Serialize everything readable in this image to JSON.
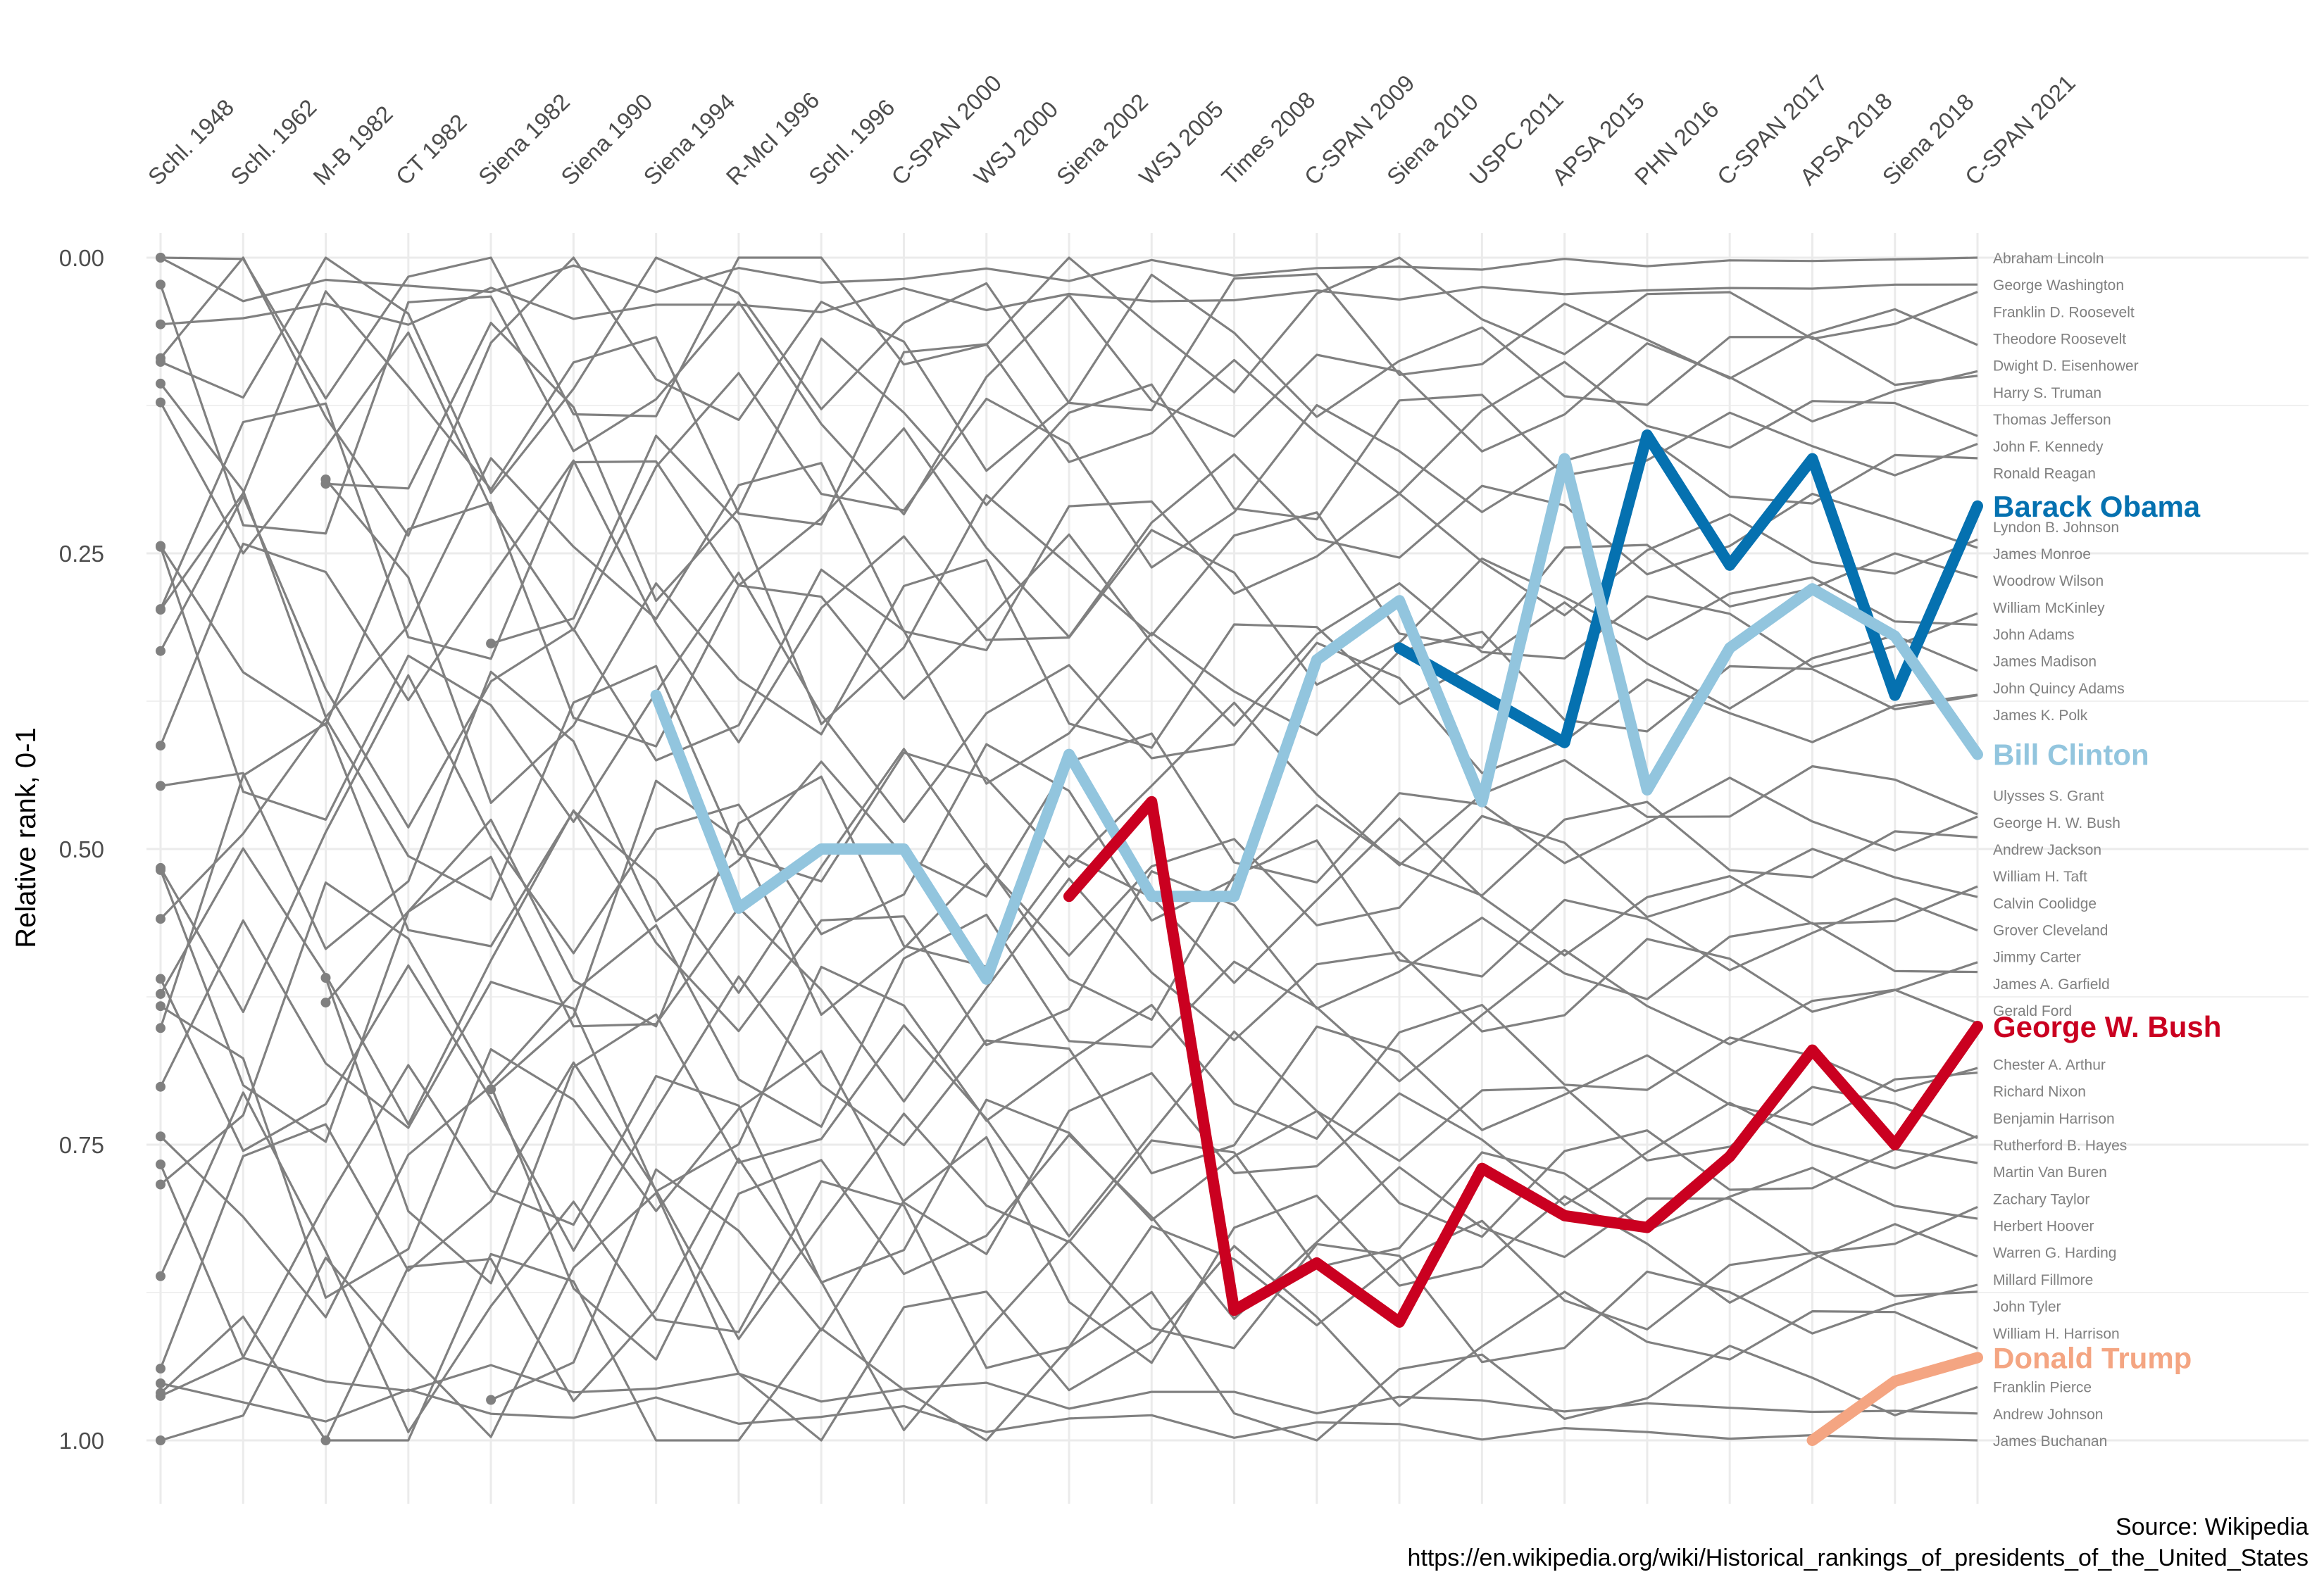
{
  "chart_data": {
    "type": "line",
    "ylabel": "Relative rank, 0-1",
    "ylim": [
      0,
      1
    ],
    "y_reversed": true,
    "yticks": [
      "0.00",
      "0.25",
      "0.50",
      "0.75",
      "1.00"
    ],
    "grid": true,
    "source_lines": [
      "Source: Wikipedia",
      "https://en.wikipedia.org/wiki/Historical_rankings_of_presidents_of_the_United_States"
    ],
    "x": [
      "Schl. 1948",
      "Schl. 1962",
      "M-B 1982",
      "CT 1982",
      "Siena 1982",
      "Siena 1990",
      "Siena 1994",
      "R-McI 1996",
      "Schl. 1996",
      "C-SPAN 2000",
      "WSJ 2000",
      "Siena 2002",
      "WSJ 2005",
      "Times 2008",
      "C-SPAN 2009",
      "Siena 2010",
      "USPC 2011",
      "APSA 2015",
      "PHN 2016",
      "C-SPAN 2017",
      "APSA 2018",
      "Siena 2018",
      "C-SPAN 2021"
    ],
    "background_series_names": [
      "Abraham Lincoln",
      "George Washington",
      "Franklin D. Roosevelt",
      "Theodore Roosevelt",
      "Dwight D. Eisenhower",
      "Harry S. Truman",
      "Thomas Jefferson",
      "John F. Kennedy",
      "Ronald Reagan",
      "Lyndon B. Johnson",
      "James Monroe",
      "Woodrow Wilson",
      "William McKinley",
      "John Adams",
      "James Madison",
      "John Quincy Adams",
      "James K. Polk",
      "Ulysses S. Grant",
      "George H. W. Bush",
      "Andrew Jackson",
      "William H. Taft",
      "Calvin Coolidge",
      "Grover Cleveland",
      "Jimmy Carter",
      "James A. Garfield",
      "Gerald Ford",
      "Chester A. Arthur",
      "Richard Nixon",
      "Benjamin Harrison",
      "Rutherford B. Hayes",
      "Martin Van Buren",
      "Zachary Taylor",
      "Herbert Hoover",
      "Warren G. Harding",
      "Millard Fillmore",
      "John Tyler",
      "William H. Harrison",
      "Franklin Pierce",
      "Andrew Johnson",
      "James Buchanan"
    ],
    "background_color": "#808080",
    "series": [
      {
        "name": "Barack Obama",
        "color": "#0571b0",
        "values": [
          null,
          null,
          null,
          null,
          null,
          null,
          null,
          null,
          null,
          null,
          null,
          null,
          null,
          null,
          null,
          0.33,
          0.37,
          0.41,
          0.15,
          0.26,
          0.17,
          0.37,
          0.21
        ]
      },
      {
        "name": "Bill Clinton",
        "color": "#92c5de",
        "values": [
          null,
          null,
          null,
          null,
          null,
          null,
          0.37,
          0.55,
          0.5,
          0.5,
          0.61,
          0.42,
          0.54,
          0.54,
          0.34,
          0.29,
          0.46,
          0.17,
          0.45,
          0.33,
          0.28,
          0.32,
          0.42
        ]
      },
      {
        "name": "George W. Bush",
        "color": "#ca0020",
        "values": [
          null,
          null,
          null,
          null,
          null,
          null,
          null,
          null,
          null,
          null,
          null,
          0.54,
          0.46,
          0.89,
          0.85,
          0.9,
          0.77,
          0.81,
          0.82,
          0.76,
          0.67,
          0.75,
          0.65
        ]
      },
      {
        "name": "Donald Trump",
        "color": "#f4a582",
        "values": [
          null,
          null,
          null,
          null,
          null,
          null,
          null,
          null,
          null,
          null,
          null,
          null,
          null,
          null,
          null,
          null,
          null,
          null,
          null,
          null,
          1.0,
          0.95,
          0.93
        ]
      }
    ]
  }
}
